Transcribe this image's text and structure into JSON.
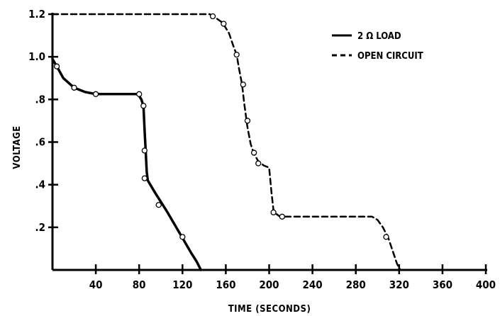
{
  "chart_data": {
    "type": "line",
    "xlabel": "TIME (SECONDS)",
    "ylabel": "VOLTAGE",
    "xlim": [
      0,
      400
    ],
    "ylim": [
      0,
      1.2
    ],
    "x_ticks": [
      40,
      80,
      120,
      160,
      200,
      240,
      280,
      320,
      360,
      400
    ],
    "x_tick_labels": [
      "40",
      "80",
      "120",
      "160",
      "200",
      "240",
      "280",
      "320",
      "360",
      "400"
    ],
    "y_ticks": [
      0.2,
      0.4,
      0.6,
      0.8,
      1.0,
      1.2
    ],
    "y_tick_labels": [
      ".2",
      ".4",
      ".6",
      ".8",
      "1.0",
      "1.2"
    ],
    "grid": false,
    "legend_position": "top-right",
    "series": [
      {
        "name": "2 Ω LOAD",
        "style": "solid",
        "color": "#000000",
        "x": [
          0,
          4,
          10,
          20,
          30,
          40,
          55,
          70,
          79,
          82,
          84,
          85,
          86,
          87,
          88,
          95,
          105,
          120,
          128,
          133,
          137
        ],
        "y": [
          0.99,
          0.955,
          0.9,
          0.855,
          0.835,
          0.825,
          0.825,
          0.825,
          0.825,
          0.8,
          0.77,
          0.66,
          0.56,
          0.46,
          0.42,
          0.36,
          0.28,
          0.15,
          0.08,
          0.04,
          0.0
        ],
        "markers_x": [
          4,
          20,
          40,
          80,
          84,
          85,
          85,
          98,
          120
        ],
        "markers_y": [
          0.955,
          0.855,
          0.825,
          0.825,
          0.77,
          0.56,
          0.43,
          0.305,
          0.155
        ]
      },
      {
        "name": "OPEN CIRCUIT",
        "style": "dashed",
        "color": "#000000",
        "x": [
          0,
          50,
          100,
          145,
          150,
          157,
          163,
          167,
          170,
          172,
          175,
          177,
          180,
          183,
          186,
          190,
          195,
          200,
          202,
          204,
          206,
          210,
          220,
          240,
          270,
          295,
          300,
          305,
          310,
          314,
          318,
          321
        ],
        "y": [
          1.2,
          1.2,
          1.2,
          1.2,
          1.185,
          1.16,
          1.11,
          1.05,
          1.01,
          0.95,
          0.87,
          0.78,
          0.67,
          0.59,
          0.545,
          0.51,
          0.49,
          0.48,
          0.37,
          0.28,
          0.265,
          0.25,
          0.25,
          0.25,
          0.25,
          0.25,
          0.235,
          0.2,
          0.15,
          0.09,
          0.03,
          0.0
        ],
        "markers_x": [
          148,
          158,
          170,
          176,
          180,
          186,
          190,
          204,
          212,
          308
        ],
        "markers_y": [
          1.19,
          1.155,
          1.01,
          0.87,
          0.7,
          0.55,
          0.5,
          0.27,
          0.25,
          0.155
        ]
      }
    ]
  }
}
